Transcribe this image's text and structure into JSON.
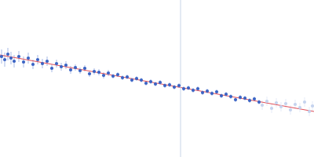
{
  "chart_data": {
    "type": "scatter",
    "xlim": [
      0,
      400
    ],
    "ylim": [
      0,
      200
    ],
    "tick_labels": false,
    "grid": false,
    "series": [
      {
        "type": "scatter",
        "color": "#3a63c4",
        "marker": "circle",
        "x": [
          2,
          6,
          10,
          14,
          18,
          24,
          30,
          36,
          42,
          48,
          54,
          60,
          66,
          72,
          78,
          84,
          90,
          96,
          102,
          108,
          114,
          120,
          126,
          132,
          138,
          144,
          150,
          156,
          162,
          168,
          174,
          180,
          186,
          192,
          198,
          204,
          210,
          216,
          222,
          228,
          234,
          240,
          246,
          252,
          258,
          264,
          270,
          276,
          282,
          288,
          294,
          300,
          306,
          312,
          318,
          324,
          330
        ],
        "values": [
          128,
          124,
          131,
          126,
          122,
          128,
          121,
          126,
          118,
          124,
          119,
          122,
          113,
          119,
          115,
          117,
          111,
          114,
          110,
          113,
          106,
          109,
          108,
          104,
          107,
          103,
          105,
          101,
          102,
          98,
          100,
          98,
          94,
          96,
          93,
          95,
          91,
          92,
          89,
          91,
          87,
          88,
          85,
          87,
          82,
          84,
          81,
          83,
          78,
          80,
          77,
          73,
          76,
          75,
          72,
          74,
          70
        ],
        "errors": [
          9,
          9,
          8,
          8,
          8,
          7,
          7,
          7,
          6,
          6,
          6,
          6,
          5,
          5,
          5,
          5,
          5,
          4,
          4,
          4,
          4,
          4,
          4,
          4,
          4,
          3,
          3,
          3,
          3,
          3,
          3,
          3,
          3,
          3,
          3,
          3,
          3,
          3,
          3,
          3,
          3,
          3,
          3,
          3,
          3,
          3,
          3,
          3,
          3,
          3,
          3,
          3,
          3,
          3,
          3,
          3,
          3
        ]
      },
      {
        "type": "scatter",
        "color": "#c5d3ee",
        "marker": "circle",
        "x": [
          334,
          340,
          346,
          352,
          358,
          364,
          370,
          376,
          382,
          388,
          394,
          398
        ],
        "values": [
          66,
          71,
          62,
          69,
          64,
          68,
          60,
          67,
          63,
          70,
          58,
          65
        ],
        "errors": [
          6,
          6,
          6,
          6,
          6,
          6,
          6,
          6,
          6,
          6,
          6,
          6
        ]
      },
      {
        "type": "line",
        "color": "#e0505a",
        "line_style": "solid",
        "x": [
          0,
          400
        ],
        "values": [
          130,
          58
        ]
      },
      {
        "type": "line",
        "color": "#c8d4e8",
        "line_style": "solid",
        "x": [
          230,
          230
        ],
        "values": [
          0,
          200
        ]
      }
    ]
  }
}
